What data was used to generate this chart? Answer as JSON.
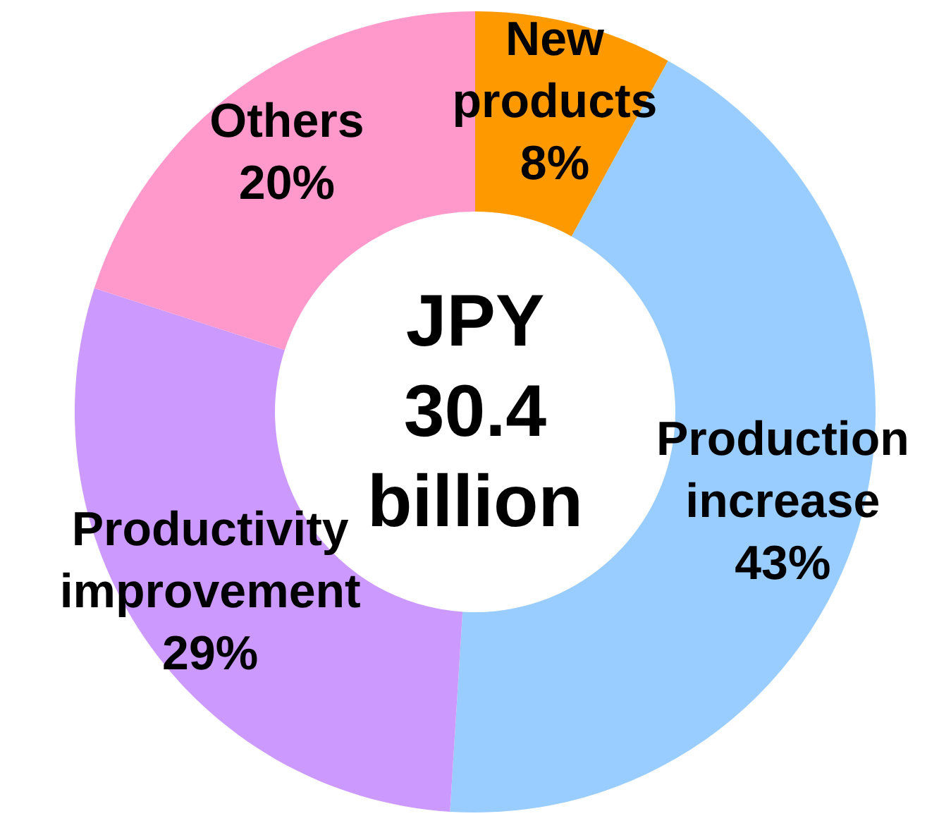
{
  "chart_data": {
    "type": "donut",
    "title": "JPY 30.4 billion",
    "categories": [
      "New products",
      "Production increase",
      "Productivity improvement",
      "Others"
    ],
    "values": [
      8,
      43,
      29,
      20
    ],
    "colors": [
      "#ff9900",
      "#99ccff",
      "#cc99ff",
      "#ff99cc"
    ],
    "value_labels": [
      "8%",
      "43%",
      "29%",
      "20%"
    ]
  }
}
